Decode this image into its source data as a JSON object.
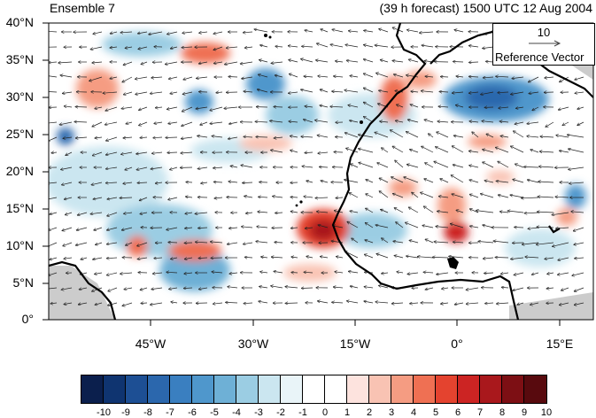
{
  "title_left": "Ensemble 7",
  "title_right": "(39 h forecast) 1500 UTC 12 Aug 2004",
  "y_ticks": [
    "40°N",
    "35°N",
    "30°N",
    "25°N",
    "20°N",
    "15°N",
    "10°N",
    "5°N",
    "0°"
  ],
  "x_ticks": [
    "45°W",
    "30°W",
    "15°W",
    "0°",
    "15°E"
  ],
  "reference_vector": {
    "magnitude": "10",
    "label": "Reference Vector"
  },
  "colorbar": {
    "labels": [
      "-10",
      "-9",
      "-8",
      "-7",
      "-6",
      "-5",
      "-4",
      "-3",
      "-2",
      "-1",
      "0",
      "1",
      "2",
      "3",
      "4",
      "5",
      "6",
      "7",
      "8",
      "9",
      "10"
    ],
    "colors": [
      "#0b1f4d",
      "#0f3470",
      "#1d4f94",
      "#2b67ad",
      "#3a7fc0",
      "#4f97cc",
      "#6eb0d6",
      "#9bcde3",
      "#cbe6f0",
      "#e9f4f8",
      "#ffffff",
      "#ffffff",
      "#fde3de",
      "#f9c3b3",
      "#f59c82",
      "#ef7053",
      "#e4432f",
      "#cc2423",
      "#a9181c",
      "#7d0f14",
      "#580a0e"
    ]
  },
  "map": {
    "lat_range": [
      0,
      40
    ],
    "lon_range": [
      -60,
      20
    ],
    "field_colors": {
      "land": "#cccccc",
      "ocean": "#ffffff"
    }
  }
}
